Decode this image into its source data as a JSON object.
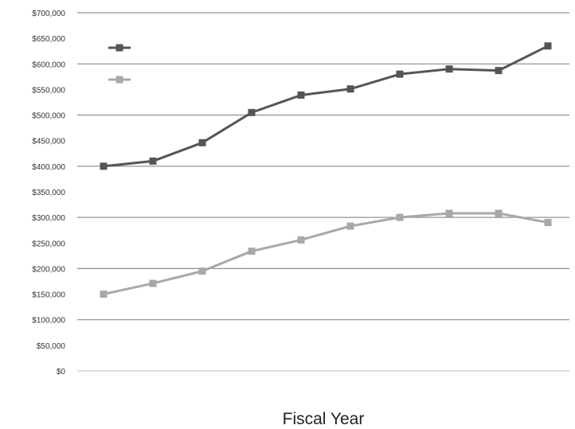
{
  "chart_data": {
    "type": "line",
    "xlabel": "Fiscal Year",
    "ylabel": "",
    "ylim": [
      0,
      700000
    ],
    "y_step": 50000,
    "categories": [
      "",
      "",
      "",
      "",
      "",
      "",
      "",
      "",
      "",
      ""
    ],
    "y_tick_labels": [
      "$0",
      "$50,000",
      "$100,000",
      "$150,000",
      "$200,000",
      "$250,000",
      "$300,000",
      "$350,000",
      "$400,000",
      "$450,000",
      "$500,000",
      "$550,000",
      "$600,000",
      "$650,000",
      "$700,000"
    ],
    "grid": "horizontal",
    "legend_position": "top-left",
    "series": [
      {
        "name": "",
        "color": "#555555",
        "values": [
          400000,
          410000,
          446000,
          505000,
          539000,
          551000,
          580000,
          590000,
          587000,
          635000
        ]
      },
      {
        "name": "",
        "color": "#a8a8a8",
        "values": [
          150000,
          171000,
          195000,
          234000,
          256000,
          283000,
          300000,
          308000,
          308000,
          290000
        ]
      }
    ]
  }
}
